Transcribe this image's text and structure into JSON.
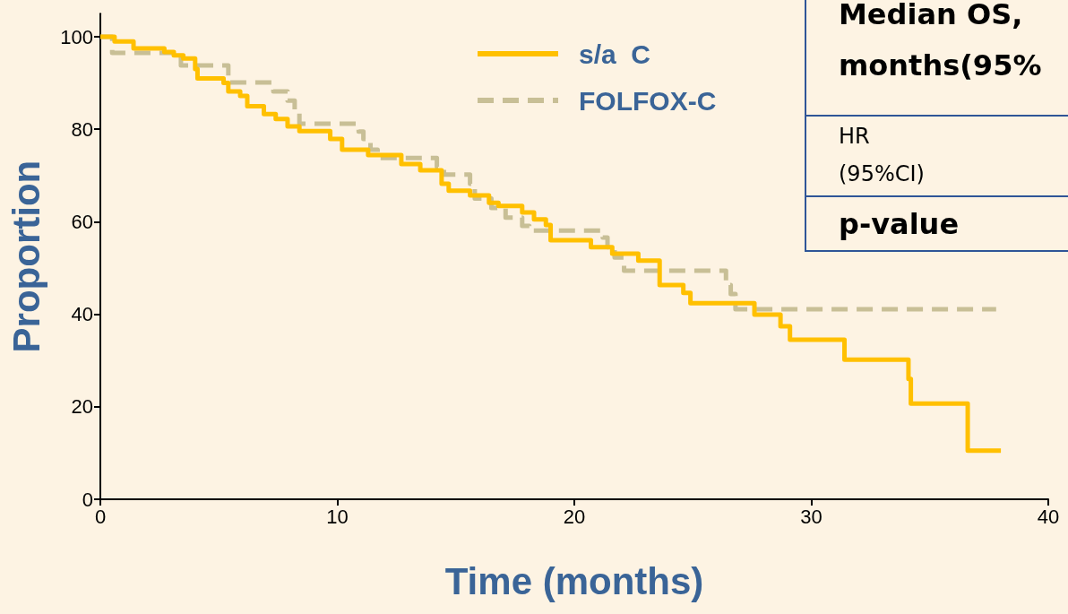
{
  "chart_data": {
    "type": "step",
    "xlabel": "Time (months)",
    "ylabel": "Proportion",
    "xlim": [
      0,
      40
    ],
    "xticks": [
      0,
      10,
      20,
      30,
      40
    ],
    "ylim": [
      0,
      105
    ],
    "yticks": [
      0,
      20,
      40,
      60,
      80,
      100
    ],
    "grid": false,
    "legend": "top",
    "marker": "none",
    "annotations": [
      "Median OS,",
      "months(95%",
      "HR",
      "(95%CI)",
      "p-value"
    ],
    "series": [
      {
        "name": "s/a  C",
        "color": "#ffc000",
        "line_style": "solid",
        "x": [
          0,
          0.6,
          1.4,
          2.7,
          3.1,
          3.5,
          4.0,
          4.1,
          5.2,
          5.4,
          5.9,
          6.2,
          6.9,
          7.4,
          7.9,
          8.4,
          9.7,
          10.2,
          11.3,
          12.7,
          13.5,
          14.4,
          14.7,
          15.6,
          16.4,
          16.8,
          17.8,
          18.3,
          18.8,
          19.0,
          20.7,
          21.6,
          22.7,
          23.6,
          24.6,
          24.9,
          27.6,
          28.7,
          29.1,
          31.4,
          34.1,
          34.2,
          36.6,
          38.0
        ],
        "values": [
          100,
          99,
          97.5,
          96.7,
          96,
          95.3,
          93,
          91,
          90,
          88.2,
          87.2,
          85,
          83.3,
          82.2,
          80.6,
          79.6,
          77.9,
          75.6,
          74.4,
          72.5,
          71.1,
          68.2,
          66.7,
          65.7,
          64.1,
          63.4,
          62,
          60.5,
          59.3,
          56,
          54.5,
          53.1,
          51.6,
          46.3,
          44.6,
          42.4,
          39.9,
          37.4,
          34.5,
          30.2,
          26,
          20.7,
          10.5,
          10.5
        ]
      },
      {
        "name": "FOLFOX-C",
        "color": "#c8bf96",
        "line_style": "dashed",
        "x": [
          0,
          0.5,
          3.4,
          5.4,
          7.3,
          7.9,
          8.2,
          8.4,
          10.9,
          11.1,
          11.4,
          11.7,
          14.2,
          14.5,
          15.6,
          15.8,
          16.5,
          17.1,
          17.8,
          18.1,
          21.2,
          21.4,
          21.7,
          22.1,
          26.4,
          26.6,
          26.8,
          37.8
        ],
        "values": [
          100,
          96.5,
          93.8,
          90.1,
          88.2,
          86.2,
          84.1,
          81.2,
          79.5,
          77.9,
          75.6,
          73.8,
          71.9,
          70.2,
          68.2,
          65,
          63,
          60.9,
          59.1,
          58.1,
          56.6,
          54.5,
          52.3,
          49.4,
          46.3,
          44.4,
          41.1,
          41.1
        ]
      }
    ]
  }
}
